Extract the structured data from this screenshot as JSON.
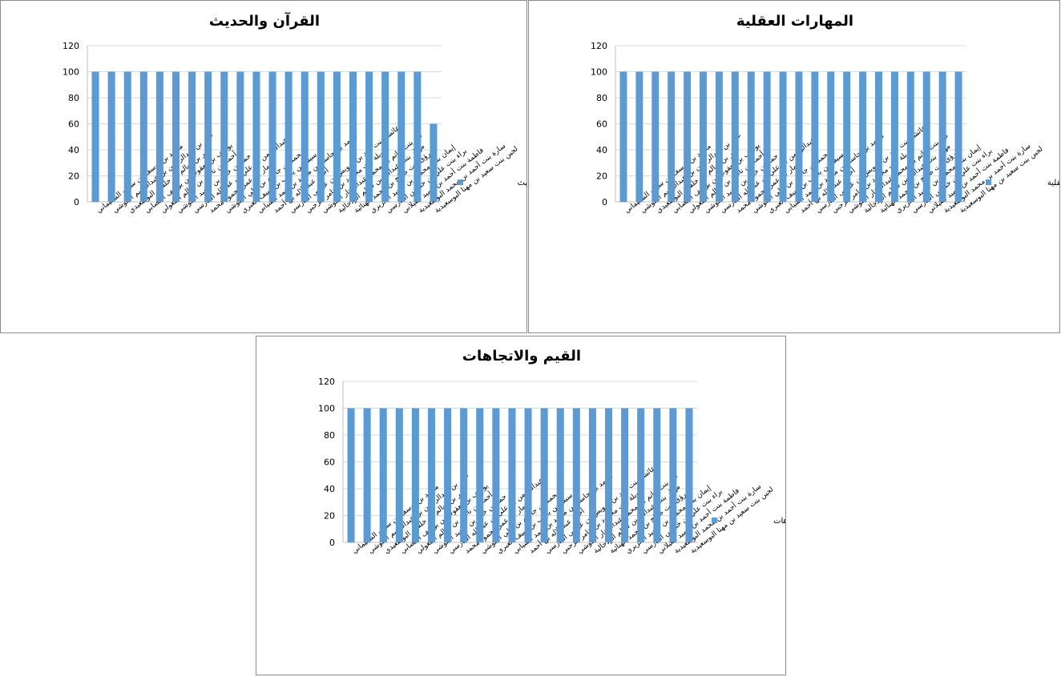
{
  "chart_data": [
    {
      "type": "bar",
      "title": "القرآن والحديث",
      "xlabel": "",
      "ylabel": "",
      "ylim": [
        0,
        120
      ],
      "yticks": [
        0,
        20,
        40,
        60,
        80,
        100,
        120
      ],
      "grid": true,
      "legend_position": "right",
      "categories": [
        "محمد بن يوسف بن سيف  السليماني",
        "عمر بن عبدالرحمن بن عبدالرحيم البلوشي",
        "نصر بن سالم بن خلفان البوسعيدي",
        "يوسف بن يعقوب بن يوسف القصابي",
        "أحمد بن ناصر بن سالم المعولي",
        "حمد بن خالد بن سعيد البلوشي",
        "عبدالرحمن بن علي بن عبدالله القارسي",
        "عمار بن عمر محمود محمد",
        "محمد بن جاسم بن علي البلوشي",
        "سيف بن يعرب بن سيف العبري",
        "محمد بن جاسم بن محمد بن حمد  السيابي",
        "أحمد عبد الإله بن أحمد",
        "عائشة بنت فهد بن درويش بن عيسى الفارسي",
        "نويلة بنت محمود بن عامر الرحبي",
        "نور بنت حاتم بن محمد عبدالستار البلوشي",
        "مهناز بنت عبدالله بن سالم الزدجالية",
        "رؤى بنت صالح بن محمد الهنائية",
        "إيمان بنت محمود بن سعيد الحزيري",
        "براء بنت علي بن خميس الفارسي",
        "فاطمة بنت أحمد بن حميد الغيلاني",
        "سارة بنت أحمد بن محمد البوسعيدية",
        "لجين بنت سعيد بن مهنا البوسعيدية"
      ],
      "series": [
        {
          "name": "القرآن والحديث",
          "color": "#5b9bd5",
          "values": [
            100,
            100,
            100,
            100,
            100,
            100,
            100,
            100,
            100,
            100,
            100,
            100,
            100,
            100,
            100,
            100,
            100,
            100,
            100,
            100,
            100,
            60
          ]
        }
      ]
    },
    {
      "type": "bar",
      "title": "المهارات العقلية",
      "xlabel": "",
      "ylabel": "",
      "ylim": [
        0,
        120
      ],
      "yticks": [
        0,
        20,
        40,
        60,
        80,
        100,
        120
      ],
      "grid": true,
      "legend_position": "right",
      "categories": [
        "محمد بن يوسف بن سيف  السليماني",
        "عمر بن عبدالرحمن بن عبدالرحيم البلوشي",
        "نصر بن سالم بن خلفان البوسعيدي",
        "يوسف بن يعقوب بن يوسف القصابي",
        "أحمد بن ناصر بن سالم المعولي",
        "حمد بن خالد بن سعيد البلوشي",
        "عبدالرحمن بن علي بن عبدالله القارسي",
        "عمار بن عمر محمود محمد",
        "محمد بن جاسم بن علي البلوشي",
        "سيف بن يعرب بن سيف العبري",
        "محمد بن جاسم بن محمد بن حمد  السيابي",
        "أحمد عبد الإله بن أحمد",
        "عائشة بنت فهد بن درويش بن عيسى الفارسي",
        "نويلة بنت محمود بن عامر الرحبي",
        "نور بنت حاتم بن محمد عبدالستار البلوشي",
        "مهناز بنت عبدالله بن سالم الزدجالية",
        "رؤى بنت صالح بن محمد الهنائية",
        "إيمان بنت محمود بن سعيد الحزيري",
        "براء بنت علي بن خميس الفارسي",
        "فاطمة بنت أحمد بن حميد الغيلاني",
        "سارة بنت أحمد بن محمد البوسعيدية",
        "لجين بنت سعيد بن مهنا البوسعيدية"
      ],
      "series": [
        {
          "name": "المهارات العقلية",
          "color": "#5b9bd5",
          "values": [
            100,
            100,
            100,
            100,
            100,
            100,
            100,
            100,
            100,
            100,
            100,
            100,
            100,
            100,
            100,
            100,
            100,
            100,
            100,
            100,
            100,
            100
          ]
        }
      ]
    },
    {
      "type": "bar",
      "title": "القيم والاتجاهات",
      "xlabel": "",
      "ylabel": "",
      "ylim": [
        0,
        120
      ],
      "yticks": [
        0,
        20,
        40,
        60,
        80,
        100,
        120
      ],
      "grid": true,
      "legend_position": "right",
      "categories": [
        "محمد بن يوسف بن سيف  السليماني",
        "عمر بن عبدالرحمن بن عبدالرحيم البلوشي",
        "نصر بن سالم بن خلفان البوسعيدي",
        "يوسف بن يعقوب بن يوسف القصابي",
        "أحمد بن ناصر بن سالم المعولي",
        "حمد بن خالد بن سعيد البلوشي",
        "عبدالرحمن بن علي بن عبدالله القارسي",
        "عمار بن عمر محمود محمد",
        "محمد بن جاسم بن علي البلوشي",
        "سيف بن يعرب بن سيف العبري",
        "محمد بن جاسم بن محمد بن حمد  السيابي",
        "أحمد عبد الإله بن أحمد",
        "عائشة بنت فهد بن درويش بن عيسى الفارسي",
        "نويلة بنت محمود بن عامر الرحبي",
        "نور بنت حاتم بن محمد عبدالستار البلوشي",
        "مهناز بنت عبدالله بن سالم الزدجالية",
        "رؤى بنت صالح بن محمد الهنائية",
        "إيمان بنت محمود بن سعيد الحزيري",
        "براء بنت علي بن خميس الفارسي",
        "فاطمة بنت أحمد بن حميد الغيلاني",
        "سارة بنت أحمد بن محمد البوسعيدية",
        "لجين بنت سعيد بن مهنا البوسعيدية"
      ],
      "series": [
        {
          "name": "القيم والاتجاهات",
          "color": "#5b9bd5",
          "values": [
            100,
            100,
            100,
            100,
            100,
            100,
            100,
            100,
            100,
            100,
            100,
            100,
            100,
            100,
            100,
            100,
            100,
            100,
            100,
            100,
            100,
            100
          ]
        }
      ]
    }
  ]
}
